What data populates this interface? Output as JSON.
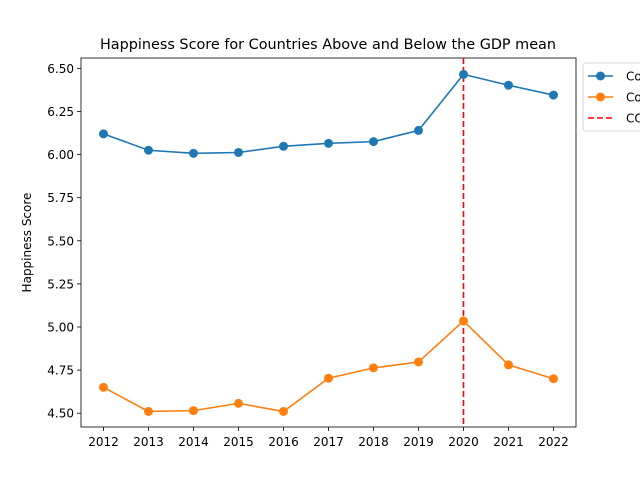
{
  "chart_data": {
    "type": "line",
    "title": "Happiness Score for Countries Above and Below the GDP mean",
    "xlabel": "",
    "ylabel": "Happiness Score",
    "x": [
      2012,
      2013,
      2014,
      2015,
      2016,
      2017,
      2018,
      2019,
      2020,
      2021,
      2022
    ],
    "x_ticks": [
      "2012",
      "2013",
      "2014",
      "2015",
      "2016",
      "2017",
      "2018",
      "2019",
      "2020",
      "2021",
      "2022"
    ],
    "y_ticks": [
      "4.50",
      "4.75",
      "5.00",
      "5.25",
      "5.50",
      "5.75",
      "6.00",
      "6.25",
      "6.50"
    ],
    "ylim": [
      4.42,
      6.56
    ],
    "grid": false,
    "legend_position": "outside-top-right",
    "series": [
      {
        "name": "Co",
        "color": "#1f77b4",
        "values": [
          6.12,
          6.025,
          6.007,
          6.012,
          6.048,
          6.065,
          6.075,
          6.14,
          6.465,
          6.402,
          6.345
        ]
      },
      {
        "name": "Co",
        "color": "#ff7f0e",
        "values": [
          4.65,
          4.51,
          4.515,
          4.557,
          4.51,
          4.703,
          4.763,
          4.797,
          5.035,
          4.78,
          4.7
        ]
      }
    ],
    "reference_lines": [
      {
        "orientation": "vertical",
        "x": 2020,
        "name": "CO",
        "color": "#ff0000",
        "style": "dashed"
      }
    ]
  }
}
